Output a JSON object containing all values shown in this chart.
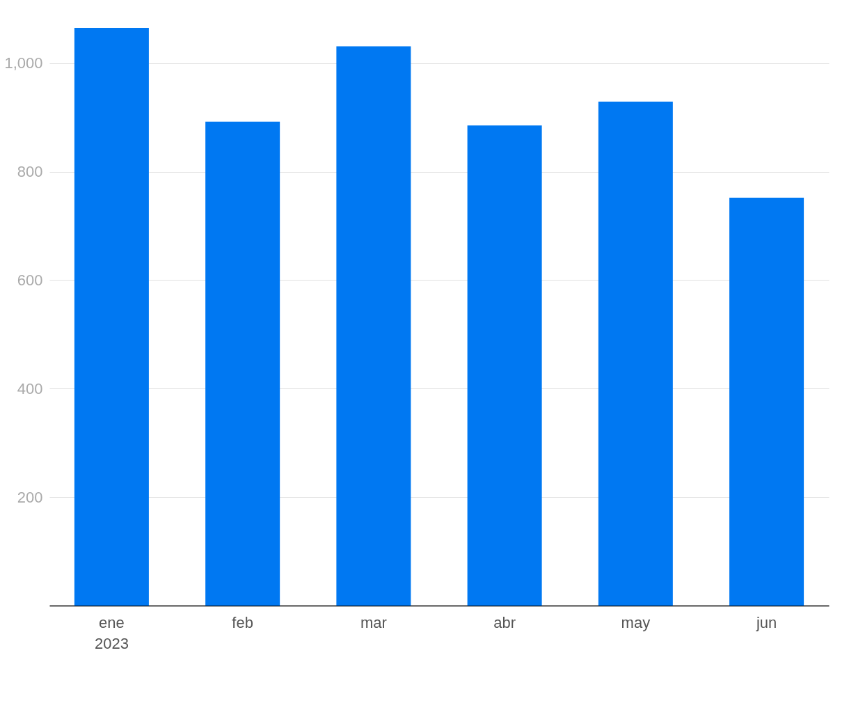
{
  "chart_data": {
    "type": "bar",
    "categories": [
      "ene\n2023",
      "feb",
      "mar",
      "abr",
      "may",
      "jun"
    ],
    "values": [
      1065,
      892,
      1031,
      885,
      929,
      752
    ],
    "color": "#0078f2",
    "ylim": [
      0,
      1065
    ],
    "yticks": [
      200,
      400,
      600,
      800,
      {
        "value": 1000,
        "label": "1,000"
      }
    ],
    "grid": "y"
  }
}
